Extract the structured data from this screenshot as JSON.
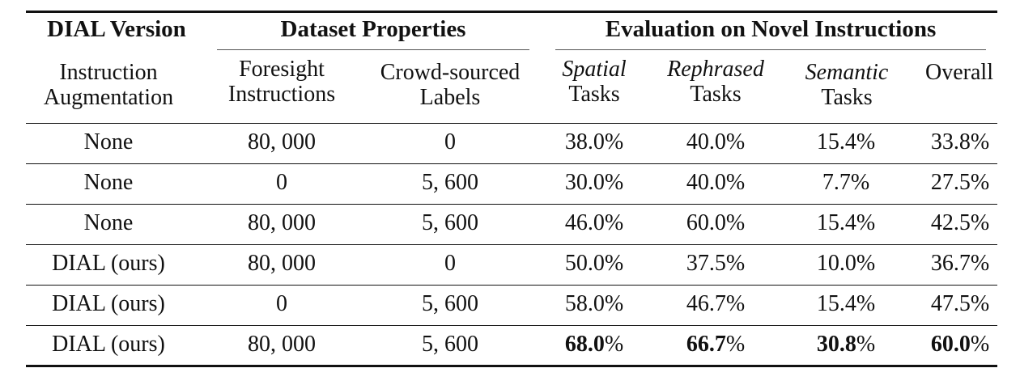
{
  "group_headers": {
    "dial_version": "DIAL Version",
    "dataset_properties": "Dataset Properties",
    "evaluation": "Evaluation on Novel Instructions"
  },
  "columns": [
    {
      "line1": "Instruction",
      "line2": "Augmentation"
    },
    {
      "line1": "Foresight",
      "line2": "Instructions"
    },
    {
      "line1": "Crowd-sourced",
      "line2": "Labels"
    },
    {
      "line1": "Spatial",
      "line2": "Tasks"
    },
    {
      "line1": "Rephrased",
      "line2": "Tasks"
    },
    {
      "line1": "Semantic",
      "line2": "Tasks"
    },
    {
      "line1": "",
      "line2": "Overall"
    }
  ],
  "rows": [
    {
      "cells": [
        "None",
        "80, 000",
        "0",
        "38.0%",
        "40.0%",
        "15.4%",
        "33.8%"
      ]
    },
    {
      "cells": [
        "None",
        "0",
        "5, 600",
        "30.0%",
        "40.0%",
        "7.7%",
        "27.5%"
      ]
    },
    {
      "cells": [
        "None",
        "80, 000",
        "5, 600",
        "46.0%",
        "60.0%",
        "15.4%",
        "42.5%"
      ]
    },
    {
      "cells": [
        "DIAL (ours)",
        "80, 000",
        "0",
        "50.0%",
        "37.5%",
        "10.0%",
        "36.7%"
      ]
    },
    {
      "cells": [
        "DIAL (ours)",
        "0",
        "5, 600",
        "58.0%",
        "46.7%",
        "15.4%",
        "47.5%"
      ]
    },
    {
      "cells": [
        "DIAL (ours)",
        "80, 000",
        "5, 600",
        "68.0",
        "66.7",
        "30.8",
        "60.0"
      ],
      "bold_suffix": [
        "",
        "",
        "",
        "%",
        "%",
        "%",
        "%"
      ]
    }
  ]
}
